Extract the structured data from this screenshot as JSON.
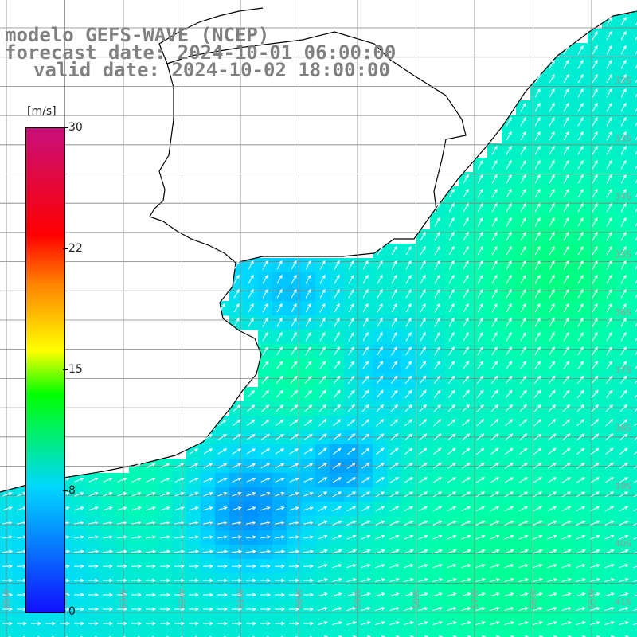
{
  "header": {
    "line1": "modelo GEFS-WAVE (NCEP)",
    "line2": "forecast date: 2024-10-01 06:00:00",
    "line3": "valid date: 2024-10-02 18:00:00"
  },
  "colorbar": {
    "unit": "[m/s]",
    "ticks": [
      "30",
      "22",
      "15",
      "8",
      "0"
    ],
    "colors": [
      "#1010ff",
      "#00d8ff",
      "#00ff00",
      "#ffff00",
      "#ff8000",
      "#ff0000",
      "#c8107a"
    ]
  },
  "map": {
    "land_color": "#ffffff",
    "coast_color": "#000000",
    "grid_color": "#808080",
    "arrow_color": "#ffffff",
    "lat_labels": [
      "32S",
      "33S",
      "34S",
      "35S",
      "36S",
      "37S",
      "38S",
      "39S",
      "40S",
      "41S"
    ],
    "lon_labels": [
      "65W",
      "64W",
      "63W",
      "62W",
      "61W",
      "60W",
      "59W",
      "58W",
      "57W",
      "56W",
      "55W"
    ]
  }
}
